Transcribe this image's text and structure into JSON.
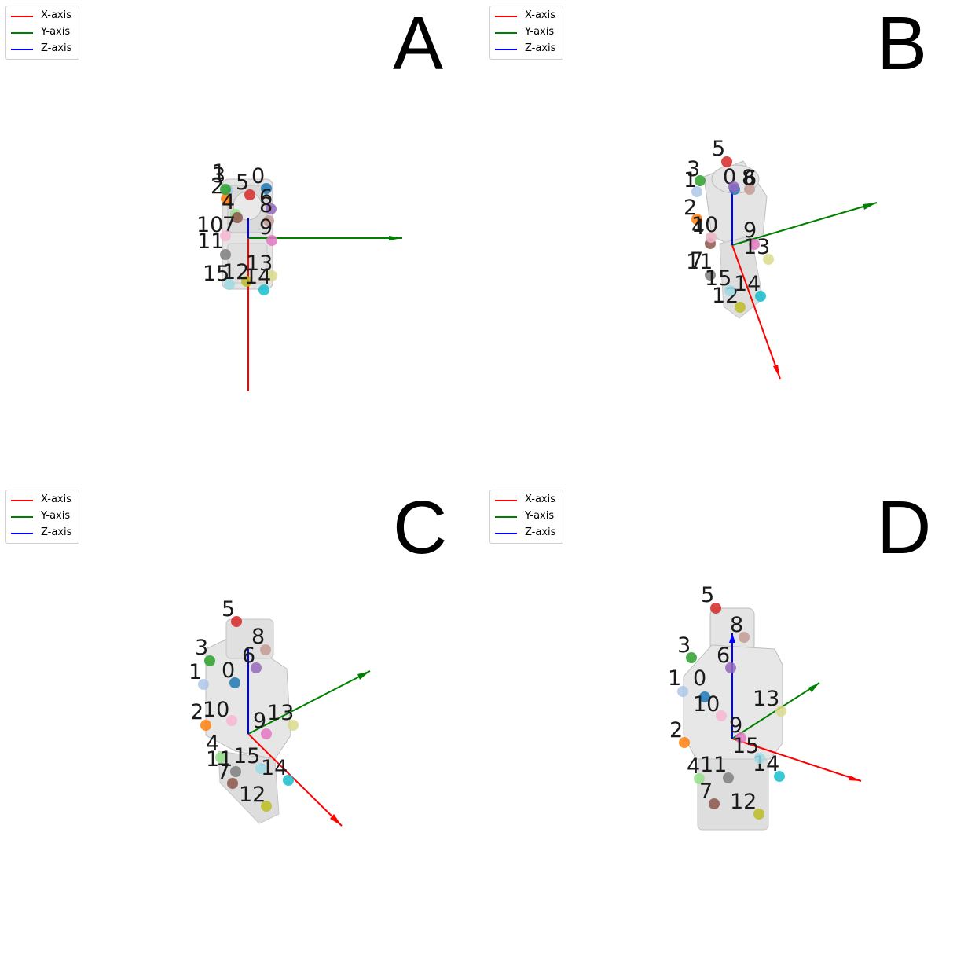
{
  "legend": [
    {
      "label": "X-axis",
      "color": "#ff0000"
    },
    {
      "label": "Y-axis",
      "color": "#008000"
    },
    {
      "label": "Z-axis",
      "color": "#0000ff"
    }
  ],
  "keypoint_colors": [
    "#1f77b4",
    "#aec7e8",
    "#ff7f0e",
    "#2ca02c",
    "#98df8a",
    "#d62728",
    "#9467bd",
    "#8c564b",
    "#c49c94",
    "#e377c2",
    "#f7b6d2",
    "#7f7f7f",
    "#bcbd22",
    "#dbdb8d",
    "#17becf",
    "#9edae5"
  ],
  "panels": [
    {
      "letter": "A",
      "keypoints": [
        "0",
        "1",
        "2",
        "3",
        "4",
        "5",
        "6",
        "7",
        "8",
        "9",
        "10",
        "11",
        "12",
        "13",
        "14",
        "15"
      ]
    },
    {
      "letter": "B",
      "keypoints": [
        "0",
        "1",
        "2",
        "3",
        "4",
        "5",
        "6",
        "7",
        "8",
        "9",
        "10",
        "11",
        "12",
        "13",
        "14",
        "15"
      ]
    },
    {
      "letter": "C",
      "keypoints": [
        "0",
        "1",
        "2",
        "3",
        "4",
        "5",
        "6",
        "7",
        "8",
        "9",
        "10",
        "11",
        "12",
        "13",
        "14",
        "15"
      ]
    },
    {
      "letter": "D",
      "keypoints": [
        "0",
        "1",
        "2",
        "3",
        "4",
        "5",
        "6",
        "7",
        "8",
        "9",
        "10",
        "11",
        "12",
        "13",
        "14",
        "15"
      ]
    }
  ]
}
